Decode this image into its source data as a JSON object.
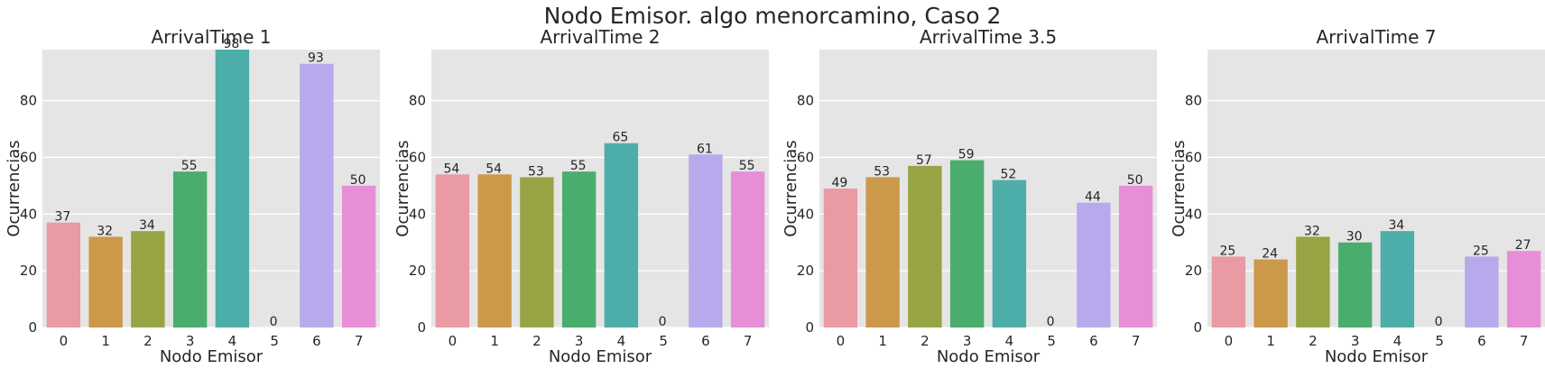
{
  "figure": {
    "title": "Nodo Emisor. algo menorcamino, Caso 2"
  },
  "style": {
    "panel_bg": "#e5e5e5",
    "grid": "#ffffff",
    "palette": [
      "#e99aa3",
      "#cc9849",
      "#98a443",
      "#4aad6e",
      "#4cada9",
      "#4ea2d6",
      "#b8a9ec",
      "#e68fd8"
    ]
  },
  "chart_data": [
    {
      "type": "bar",
      "title": "ArrivalTime 1",
      "xlabel": "Nodo Emisor",
      "ylabel": "Ocurrencias",
      "categories": [
        "0",
        "1",
        "2",
        "3",
        "4",
        "5",
        "6",
        "7"
      ],
      "values": [
        37,
        32,
        34,
        55,
        98,
        0,
        93,
        50
      ],
      "ylim": [
        0,
        98
      ],
      "yticks": [
        0,
        20,
        40,
        60,
        80
      ],
      "grid": true
    },
    {
      "type": "bar",
      "title": "ArrivalTime 2",
      "xlabel": "Nodo Emisor",
      "ylabel": "Ocurrencias",
      "categories": [
        "0",
        "1",
        "2",
        "3",
        "4",
        "5",
        "6",
        "7"
      ],
      "values": [
        54,
        54,
        53,
        55,
        65,
        0,
        61,
        55
      ],
      "ylim": [
        0,
        98
      ],
      "yticks": [
        0,
        20,
        40,
        60,
        80
      ],
      "grid": true
    },
    {
      "type": "bar",
      "title": "ArrivalTime 3.5",
      "xlabel": "Nodo Emisor",
      "ylabel": "Ocurrencias",
      "categories": [
        "0",
        "1",
        "2",
        "3",
        "4",
        "5",
        "6",
        "7"
      ],
      "values": [
        49,
        53,
        57,
        59,
        52,
        0,
        44,
        50
      ],
      "ylim": [
        0,
        98
      ],
      "yticks": [
        0,
        20,
        40,
        60,
        80
      ],
      "grid": true
    },
    {
      "type": "bar",
      "title": "ArrivalTime 7",
      "xlabel": "Nodo Emisor",
      "ylabel": "Ocurrencias",
      "categories": [
        "0",
        "1",
        "2",
        "3",
        "4",
        "5",
        "6",
        "7"
      ],
      "values": [
        25,
        24,
        32,
        30,
        34,
        0,
        25,
        27
      ],
      "ylim": [
        0,
        98
      ],
      "yticks": [
        0,
        20,
        40,
        60,
        80
      ],
      "grid": true
    }
  ]
}
